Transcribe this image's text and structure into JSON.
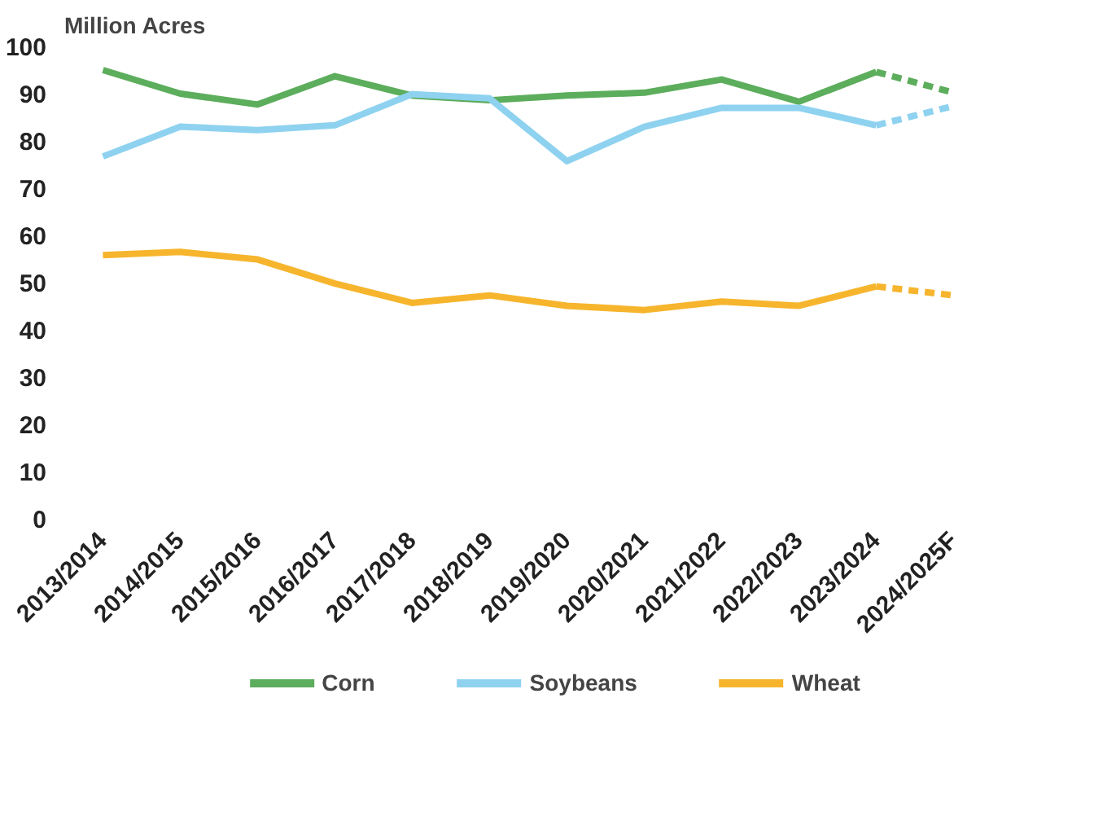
{
  "chart_data": {
    "type": "line",
    "ylabel": "Million Acres",
    "categories": [
      "2013/2014",
      "2014/2015",
      "2015/2016",
      "2016/2017",
      "2017/2018",
      "2018/2019",
      "2019/2020",
      "2020/2021",
      "2021/2022",
      "2022/2023",
      "2023/2024",
      "2024/2025F"
    ],
    "series": [
      {
        "name": "Corn",
        "color": "#5cad5c",
        "values": [
          95,
          90,
          87.7,
          93.7,
          89.6,
          88.6,
          89.6,
          90.2,
          93,
          88.3,
          94.6,
          null
        ]
      },
      {
        "name": "Soybeans",
        "color": "#8ed2f0",
        "values": [
          76.7,
          83,
          82.3,
          83.3,
          89.9,
          89,
          75.7,
          83,
          87,
          87,
          83.3,
          null
        ]
      },
      {
        "name": "Wheat",
        "color": "#f6b52d",
        "values": [
          55.8,
          56.5,
          54.9,
          49.8,
          45.7,
          47.3,
          45.1,
          44.2,
          46,
          45.1,
          49.2,
          null
        ]
      },
      {
        "color": "#5cad5c",
        "line_style": "dashed",
        "values": [
          null,
          null,
          null,
          null,
          null,
          null,
          null,
          null,
          null,
          null,
          94.6,
          90.2
        ]
      },
      {
        "color": "#8ed2f0",
        "line_style": "dashed",
        "values": [
          null,
          null,
          null,
          null,
          null,
          null,
          null,
          null,
          null,
          null,
          83.3,
          87.4
        ]
      },
      {
        "color": "#f6b52d",
        "line_style": "dashed",
        "values": [
          null,
          null,
          null,
          null,
          null,
          null,
          null,
          null,
          null,
          null,
          49.2,
          47.3
        ]
      }
    ],
    "ylim": [
      0,
      100
    ],
    "yticks": [
      0,
      10,
      20,
      30,
      40,
      50,
      60,
      70,
      80,
      90,
      100
    ],
    "grid": false,
    "legend": "bottom",
    "line_style": "solid"
  }
}
